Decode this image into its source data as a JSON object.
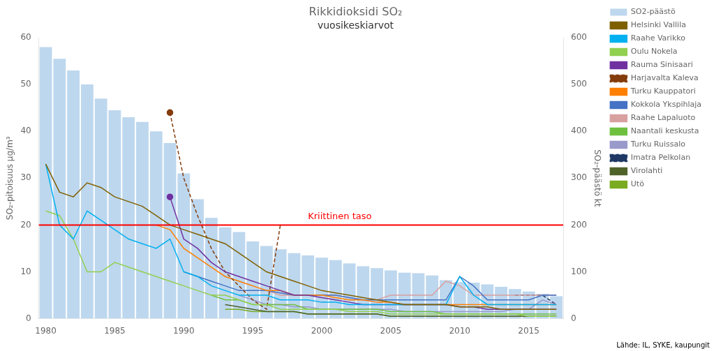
{
  "chart_data": {
    "type": "line",
    "title": "Rikkidioksidi SO₂",
    "subtitle": "vuosikeskiarvot",
    "ylabel": "SO₂-pitoisuus μg/m³",
    "y2label": "SO₂-päästö kt",
    "xlim": [
      1979.5,
      2017.5
    ],
    "xticks": [
      1980,
      1985,
      1990,
      1995,
      2000,
      2005,
      2010,
      2015
    ],
    "ylim": [
      0,
      60
    ],
    "yticks": [
      0,
      10,
      20,
      30,
      40,
      50,
      60
    ],
    "y2lim": [
      0,
      600
    ],
    "y2ticks": [
      0,
      100,
      200,
      300,
      400,
      500,
      600
    ],
    "grid": false,
    "legend": "right",
    "annotations": [
      {
        "type": "hline",
        "y": 20,
        "x": 1999,
        "text": "Kriittinen taso",
        "color": "red"
      },
      {
        "type": "note",
        "text": "Lähde: IL, SYKE, kaupungit"
      }
    ],
    "series": [
      {
        "name": "SO2-päästö",
        "type": "bar",
        "axis": "y2",
        "color": "#BDD7EE",
        "x": [
          1980,
          1981,
          1982,
          1983,
          1984,
          1985,
          1986,
          1987,
          1988,
          1989,
          1990,
          1991,
          1992,
          1993,
          1994,
          1995,
          1996,
          1997,
          1998,
          1999,
          2000,
          2001,
          2002,
          2003,
          2004,
          2005,
          2006,
          2007,
          2008,
          2009,
          2010,
          2011,
          2012,
          2013,
          2014,
          2015,
          2016,
          2017
        ],
        "values": [
          580,
          555,
          530,
          500,
          470,
          445,
          430,
          420,
          400,
          375,
          310,
          255,
          215,
          195,
          185,
          165,
          155,
          148,
          140,
          135,
          130,
          125,
          118,
          112,
          108,
          103,
          98,
          97,
          92,
          82,
          78,
          77,
          73,
          68,
          63,
          58,
          53,
          48
        ]
      },
      {
        "name": "Helsinki Vallila",
        "color": "#7F6000",
        "line_style": "solid",
        "x": [
          1980,
          1981,
          1982,
          1983,
          1984,
          1985,
          1986,
          1987,
          1988,
          1989,
          1990,
          1991,
          1992,
          1993,
          1994,
          1995,
          1996,
          1997,
          1998,
          1999,
          2000,
          2001,
          2002,
          2003,
          2004,
          2005,
          2006,
          2007,
          2008,
          2009,
          2010,
          2011,
          2012,
          2013,
          2014,
          2015,
          2016,
          2017
        ],
        "values": [
          33,
          27,
          26,
          29,
          28,
          26,
          25,
          24,
          22,
          20,
          19,
          18,
          17,
          16,
          14,
          12,
          10,
          9,
          8,
          7,
          6,
          5.5,
          5,
          4.5,
          4,
          3.5,
          3,
          3,
          3,
          3,
          2.5,
          2.5,
          2.5,
          2,
          2,
          2,
          2,
          2
        ]
      },
      {
        "name": "Raahe Varikko",
        "color": "#00B0F0",
        "line_style": "solid",
        "x": [
          1980,
          1981,
          1982,
          1983,
          1984,
          1985,
          1986,
          1987,
          1988,
          1989,
          1990,
          1991,
          1992,
          1993,
          1994,
          1995,
          1996,
          1997,
          1998,
          1999,
          2000,
          2001,
          2002,
          2003,
          2004,
          2005,
          2006,
          2007,
          2008,
          2009,
          2010,
          2011,
          2012,
          2013,
          2014,
          2015,
          2016,
          2017
        ],
        "values": [
          33,
          20,
          17,
          23,
          21,
          19,
          17,
          16,
          15,
          17,
          10,
          9,
          7,
          6,
          5,
          5,
          5,
          4,
          4,
          4,
          3.5,
          3.5,
          3,
          3,
          3,
          3,
          3,
          3,
          3,
          3,
          9,
          5,
          3,
          3,
          3,
          3,
          3,
          3
        ]
      },
      {
        "name": "Oulu Nokela",
        "color": "#92D050",
        "line_style": "solid",
        "x": [
          1980,
          1981,
          1982,
          1983,
          1984,
          1985,
          1986,
          1987,
          1988,
          1989,
          1990,
          1991,
          1992,
          1993,
          1994,
          1995,
          1996,
          1997,
          1998,
          1999,
          2000,
          2001,
          2002,
          2003,
          2004,
          2005,
          2006,
          2007,
          2008,
          2009,
          2010,
          2011,
          2012,
          2013,
          2014,
          2015,
          2016,
          2017
        ],
        "values": [
          23,
          22,
          17,
          10,
          10,
          12,
          11,
          10,
          9,
          8,
          7,
          6,
          5,
          5,
          4,
          3,
          3,
          2,
          2,
          2,
          2,
          2,
          1.5,
          1.5,
          1.5,
          1,
          1,
          1,
          1,
          1,
          1,
          1,
          1,
          1,
          1,
          0.5,
          0.5,
          0.5
        ]
      },
      {
        "name": "Rauma Sinisaari",
        "color": "#7030A0",
        "line_style": "solid",
        "marker": "start",
        "x": [
          1989,
          1990,
          1991,
          1992,
          1993,
          1994,
          1995,
          1996,
          1997,
          1998,
          1999,
          2000,
          2001,
          2002,
          2003,
          2004,
          2005,
          2006,
          2007,
          2008,
          2009,
          2010,
          2011,
          2012,
          2013,
          2014,
          2015,
          2016,
          2017
        ],
        "values": [
          26,
          17,
          15,
          12,
          10,
          9,
          8,
          7,
          6,
          5,
          5,
          4.5,
          4,
          3.5,
          3,
          3,
          3,
          3,
          3,
          3,
          3,
          2.5,
          2.5,
          2,
          2,
          2,
          2,
          2,
          2
        ]
      },
      {
        "name": "Harjavalta Kaleva",
        "color": "#843C0C",
        "line_style": "dashed",
        "marker": "start",
        "x": [
          1989,
          1990,
          1991,
          1992,
          1993,
          1994,
          1995,
          1996,
          1997
        ],
        "values": [
          44,
          30,
          22,
          15,
          10,
          7,
          4,
          2,
          20
        ]
      },
      {
        "name": "Turku Kauppatori",
        "color": "#FF7F00",
        "line_style": "solid",
        "x": [
          1988,
          1989,
          1990,
          1991,
          1992,
          1993,
          1994,
          1995,
          1996,
          1997,
          1998,
          1999,
          2000,
          2001,
          2002,
          2003,
          2004,
          2005,
          2006,
          2007,
          2008,
          2009,
          2010,
          2011,
          2012,
          2013,
          2014,
          2015,
          2016,
          2017
        ],
        "values": [
          20,
          19,
          15,
          13,
          11,
          9,
          8,
          7,
          6,
          6,
          5,
          5,
          5,
          4.5,
          4,
          4,
          3.5,
          3.5,
          3,
          3,
          3,
          3,
          3,
          3,
          3,
          3,
          3,
          3,
          3,
          3
        ]
      },
      {
        "name": "Kokkola Ykspihlaja",
        "color": "#4472C4",
        "line_style": "solid",
        "x": [
          1990,
          1991,
          1992,
          1993,
          1994,
          1995,
          1996,
          1997,
          1998,
          1999,
          2000,
          2001,
          2002,
          2003,
          2004,
          2005,
          2006,
          2007,
          2008,
          2009,
          2010,
          2011,
          2012,
          2013,
          2014,
          2015,
          2016,
          2017
        ],
        "values": [
          10,
          9,
          8,
          7,
          6,
          6,
          6,
          5.5,
          5,
          5,
          5,
          5,
          4.5,
          4,
          4,
          4,
          4,
          4,
          4,
          4,
          9,
          7,
          4,
          4,
          4,
          4,
          5,
          5
        ]
      },
      {
        "name": "Raahe Lapaluoto",
        "color": "#D9A0A0",
        "line_style": "solid",
        "x": [
          1994,
          1995,
          1996,
          1997,
          1998,
          1999,
          2000,
          2001,
          2002,
          2003,
          2004,
          2005,
          2006,
          2007,
          2008,
          2009,
          2010,
          2011,
          2012,
          2013,
          2014,
          2015,
          2016,
          2017
        ],
        "values": [
          8,
          7,
          6,
          5,
          5,
          5,
          5,
          5,
          4.5,
          4,
          4,
          5,
          5,
          5,
          5,
          8,
          7,
          5,
          5,
          5,
          5,
          5,
          5,
          5
        ]
      },
      {
        "name": "Naantali keskusta",
        "color": "#70C040",
        "line_style": "solid",
        "x": [
          1992,
          1993,
          1994,
          1995,
          1996,
          1997,
          1998,
          1999,
          2000,
          2001,
          2002,
          2003,
          2004,
          2005,
          2006,
          2007,
          2008,
          2009,
          2010,
          2011,
          2012,
          2013,
          2014,
          2015,
          2016,
          2017
        ],
        "values": [
          5,
          4,
          4,
          3,
          3,
          3,
          3,
          2,
          2,
          2,
          2,
          2,
          2,
          1.5,
          1.5,
          1.5,
          1.5,
          1,
          1,
          1,
          1,
          1,
          1,
          1,
          1,
          1
        ]
      },
      {
        "name": "Turku Ruissalo",
        "color": "#9999CC",
        "line_style": "solid",
        "x": [
          1994,
          1995,
          1996,
          1997,
          1998,
          1999,
          2000,
          2001,
          2002,
          2003,
          2004,
          2005,
          2006,
          2007,
          2008,
          2009,
          2010,
          2011,
          2012,
          2013,
          2014,
          2015,
          2016,
          2017
        ],
        "values": [
          5,
          4,
          3,
          3,
          2.5,
          2.5,
          2,
          2,
          2,
          2,
          2,
          2,
          1.5,
          1.5,
          1.5,
          1.5,
          1.5,
          1.5,
          1.5,
          1.5,
          2,
          2,
          4,
          3
        ]
      },
      {
        "name": "Imatra Pelkolan",
        "color": "#1F3864",
        "line_style": "dashed",
        "x": [
          2014,
          2015,
          2016,
          2017
        ],
        "values": [
          5,
          5,
          5,
          3
        ]
      },
      {
        "name": "Virolahti",
        "color": "#4F6228",
        "line_style": "solid",
        "x": [
          1993,
          1994,
          1995,
          1996,
          1997,
          1998,
          1999,
          2000,
          2001,
          2002,
          2003,
          2004,
          2005,
          2006,
          2007,
          2008,
          2009,
          2010,
          2011,
          2012,
          2013,
          2014,
          2015,
          2016,
          2017
        ],
        "values": [
          3,
          2.5,
          2,
          1.5,
          1.5,
          1.5,
          1,
          1,
          1,
          1,
          1,
          1,
          0.5,
          0.5,
          0.5,
          0.5,
          0.5,
          0.5,
          0.5,
          0.5,
          0.5,
          0.5,
          0.5,
          0.5,
          0.5
        ]
      },
      {
        "name": "Utö",
        "color": "#7AAB20",
        "line_style": "solid",
        "x": [
          1993,
          1994,
          1995,
          1996,
          1997,
          1998,
          1999,
          2000,
          2001,
          2002,
          2003,
          2004,
          2005,
          2006,
          2007,
          2008,
          2009,
          2010,
          2011,
          2012,
          2013,
          2014,
          2015,
          2016,
          2017
        ],
        "values": [
          2,
          2,
          1.5,
          1.5,
          1.5,
          1.5,
          1,
          1,
          1,
          1,
          1,
          1,
          0.5,
          0.5,
          0.5,
          0.5,
          0.5,
          0.5,
          0.5,
          0.5,
          0.5,
          0.5,
          0.5,
          0.5,
          0.5
        ]
      }
    ]
  }
}
